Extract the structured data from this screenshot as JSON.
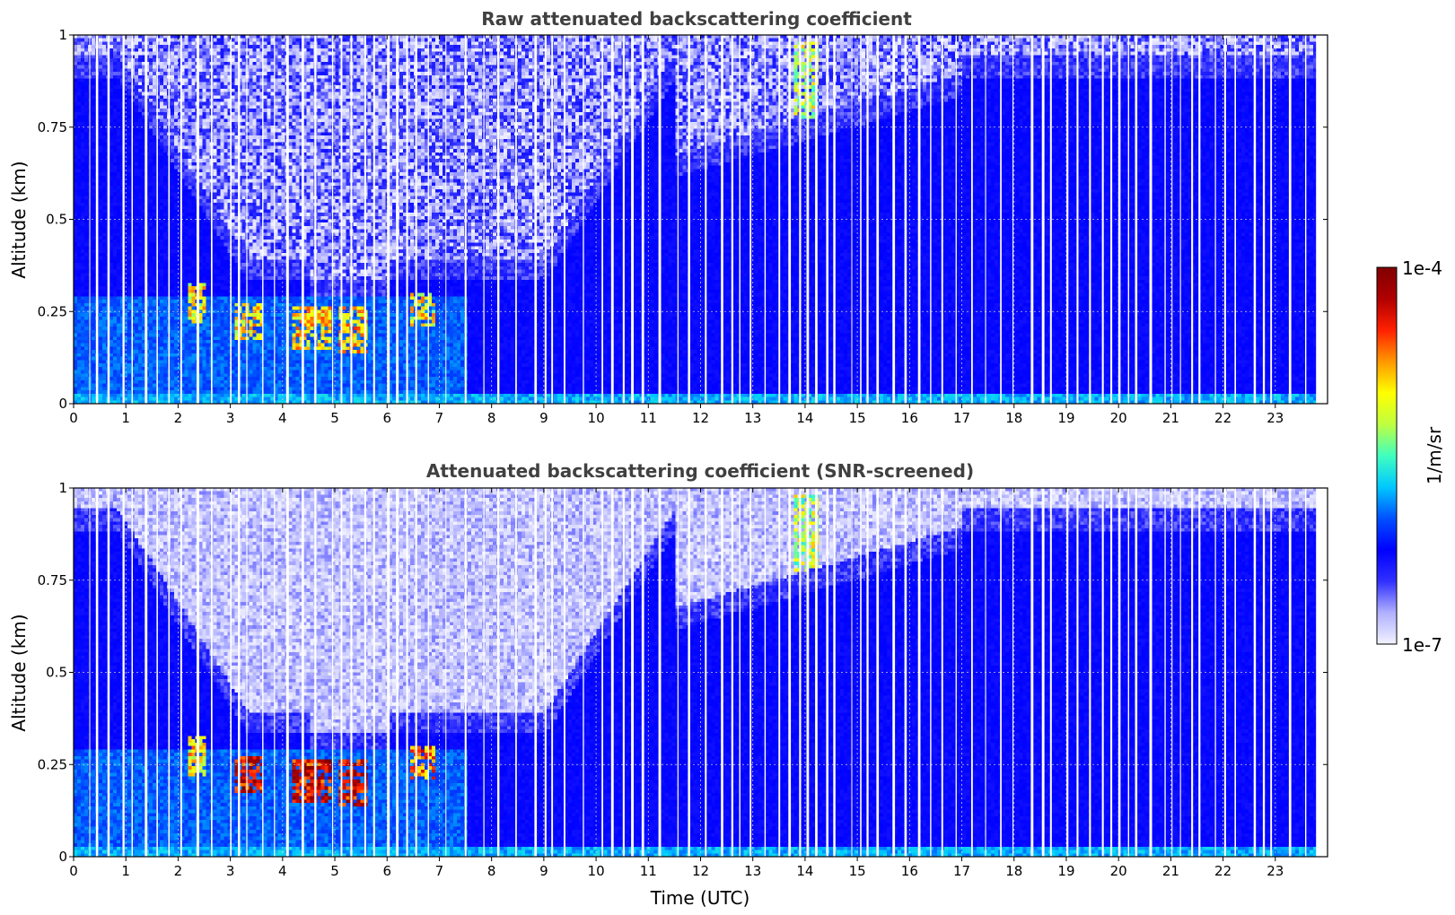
{
  "chart_data": [
    {
      "type": "heatmap",
      "title": "Raw attenuated backscattering coefficient",
      "xlabel": "",
      "ylabel": "Altitude (km)",
      "xlim": [
        0,
        24
      ],
      "ylim": [
        0,
        1
      ],
      "x_ticks": [
        "0",
        "1",
        "2",
        "3",
        "4",
        "5",
        "6",
        "7",
        "8",
        "9",
        "10",
        "11",
        "12",
        "13",
        "14",
        "15",
        "16",
        "17",
        "18",
        "19",
        "20",
        "21",
        "22",
        "23"
      ],
      "y_ticks": [
        "0",
        "0.25",
        "0.5",
        "0.75",
        "1"
      ],
      "grid": true,
      "features": [
        {
          "t_start": 2.2,
          "t_end": 2.5,
          "z_low": 0.22,
          "z_high": 0.32,
          "level": 0.78
        },
        {
          "t_start": 3.1,
          "t_end": 3.6,
          "z_low": 0.18,
          "z_high": 0.27,
          "level": 0.8
        },
        {
          "t_start": 4.2,
          "t_end": 4.9,
          "z_low": 0.15,
          "z_high": 0.26,
          "level": 0.82
        },
        {
          "t_start": 5.1,
          "t_end": 5.6,
          "z_low": 0.14,
          "z_high": 0.26,
          "level": 0.84
        },
        {
          "t_start": 6.5,
          "t_end": 6.9,
          "z_low": 0.21,
          "z_high": 0.3,
          "level": 0.78
        },
        {
          "t_start": 13.8,
          "t_end": 14.2,
          "z_low": 0.78,
          "z_high": 0.98,
          "level": 0.72
        }
      ]
    },
    {
      "type": "heatmap",
      "title": "Attenuated backscattering coefficient (SNR-screened)",
      "xlabel": "Time (UTC)",
      "ylabel": "Altitude (km)",
      "xlim": [
        0,
        24
      ],
      "ylim": [
        0,
        1
      ],
      "x_ticks": [
        "0",
        "1",
        "2",
        "3",
        "4",
        "5",
        "6",
        "7",
        "8",
        "9",
        "10",
        "11",
        "12",
        "13",
        "14",
        "15",
        "16",
        "17",
        "18",
        "19",
        "20",
        "21",
        "22",
        "23"
      ],
      "y_ticks": [
        "0",
        "0.25",
        "0.5",
        "0.75",
        "1"
      ],
      "grid": true,
      "features": [
        {
          "t_start": 2.2,
          "t_end": 2.5,
          "z_low": 0.22,
          "z_high": 0.32,
          "level": 0.8
        },
        {
          "t_start": 3.1,
          "t_end": 3.6,
          "z_low": 0.18,
          "z_high": 0.27,
          "level": 1.0
        },
        {
          "t_start": 4.2,
          "t_end": 4.9,
          "z_low": 0.15,
          "z_high": 0.26,
          "level": 1.0
        },
        {
          "t_start": 5.1,
          "t_end": 5.6,
          "z_low": 0.14,
          "z_high": 0.26,
          "level": 1.0
        },
        {
          "t_start": 6.5,
          "t_end": 6.9,
          "z_low": 0.21,
          "z_high": 0.3,
          "level": 0.9
        },
        {
          "t_start": 13.8,
          "t_end": 14.2,
          "z_low": 0.78,
          "z_high": 0.98,
          "level": 0.72
        }
      ]
    }
  ],
  "colorbar": {
    "label": "1/m/sr",
    "max_label": "1e-4",
    "min_label": "1e-7",
    "colors": [
      "#f2f2ff",
      "#b0b0ff",
      "#3030ff",
      "#0000ff",
      "#0050ff",
      "#00c8ff",
      "#40ffbf",
      "#bfff40",
      "#ffff00",
      "#ff9800",
      "#ff2000",
      "#b00000",
      "#800000"
    ]
  }
}
